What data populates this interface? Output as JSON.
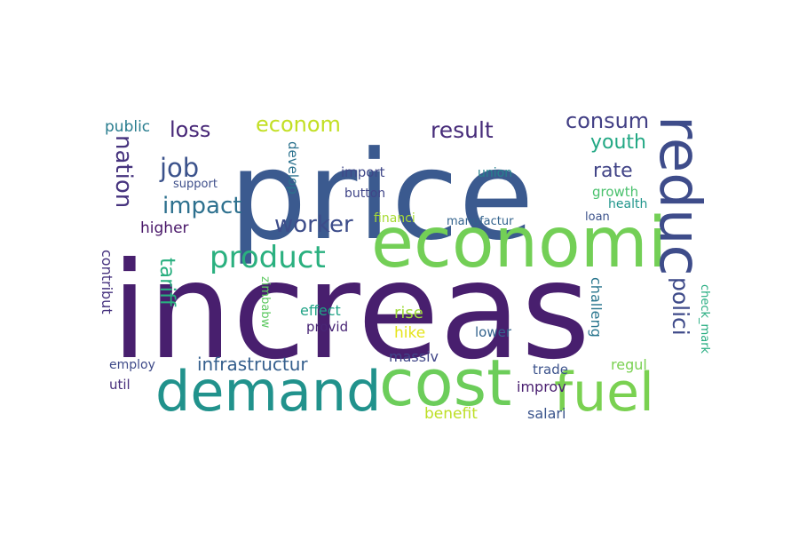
{
  "words": [
    {
      "text": "increas",
      "color": "#481f6e"
    },
    {
      "text": "price",
      "color": "#3b5a8f"
    },
    {
      "text": "economi",
      "color": "#73cf56"
    },
    {
      "text": "cost",
      "color": "#6ccd5a"
    },
    {
      "text": "demand",
      "color": "#21928c"
    },
    {
      "text": "fuel",
      "color": "#7ad151"
    },
    {
      "text": "reduc",
      "color": "#3e4c8a"
    },
    {
      "text": "product",
      "color": "#2ab07f"
    },
    {
      "text": "worker",
      "color": "#3d4d8a"
    },
    {
      "text": "impact",
      "color": "#2d708e"
    },
    {
      "text": "job",
      "color": "#3b528b"
    },
    {
      "text": "loss",
      "color": "#482878"
    },
    {
      "text": "econom",
      "color": "#c2df23"
    },
    {
      "text": "result",
      "color": "#472c7a"
    },
    {
      "text": "consum",
      "color": "#423f85"
    },
    {
      "text": "youth",
      "color": "#22a884"
    },
    {
      "text": "rate",
      "color": "#414487"
    },
    {
      "text": "nation",
      "color": "#46337e"
    },
    {
      "text": "tariff",
      "color": "#29af7f"
    },
    {
      "text": "polici",
      "color": "#3e4a89"
    },
    {
      "text": "infrastructur",
      "color": "#355f8d"
    },
    {
      "text": "public",
      "color": "#287c8e"
    },
    {
      "text": "higher",
      "color": "#481668"
    },
    {
      "text": "develop",
      "color": "#2c728e"
    },
    {
      "text": "import",
      "color": "#3f4788"
    },
    {
      "text": "support",
      "color": "#3d4e8a"
    },
    {
      "text": "button",
      "color": "#404588"
    },
    {
      "text": "union",
      "color": "#26828e"
    },
    {
      "text": "growth",
      "color": "#4ac16d"
    },
    {
      "text": "health",
      "color": "#1f958b"
    },
    {
      "text": "loan",
      "color": "#3b528b"
    },
    {
      "text": "financi",
      "color": "#a8db34"
    },
    {
      "text": "manufactur",
      "color": "#33638d"
    },
    {
      "text": "contribut",
      "color": "#46327e"
    },
    {
      "text": "zimbabw",
      "color": "#5ec962"
    },
    {
      "text": "effect",
      "color": "#20a386"
    },
    {
      "text": "provid",
      "color": "#482575"
    },
    {
      "text": "rise",
      "color": "#9fda3a"
    },
    {
      "text": "hike",
      "color": "#e5e419"
    },
    {
      "text": "lower",
      "color": "#33638d"
    },
    {
      "text": "challeng",
      "color": "#2a768e"
    },
    {
      "text": "check_mark",
      "color": "#27ad81"
    },
    {
      "text": "employ",
      "color": "#3e4a89"
    },
    {
      "text": "massiv",
      "color": "#404688"
    },
    {
      "text": "trade",
      "color": "#3b528b"
    },
    {
      "text": "regul",
      "color": "#7ad151"
    },
    {
      "text": "util",
      "color": "#472d7b"
    },
    {
      "text": "improv",
      "color": "#481d6f"
    },
    {
      "text": "benefit",
      "color": "#bddf26"
    },
    {
      "text": "salari",
      "color": "#3a548c"
    }
  ]
}
